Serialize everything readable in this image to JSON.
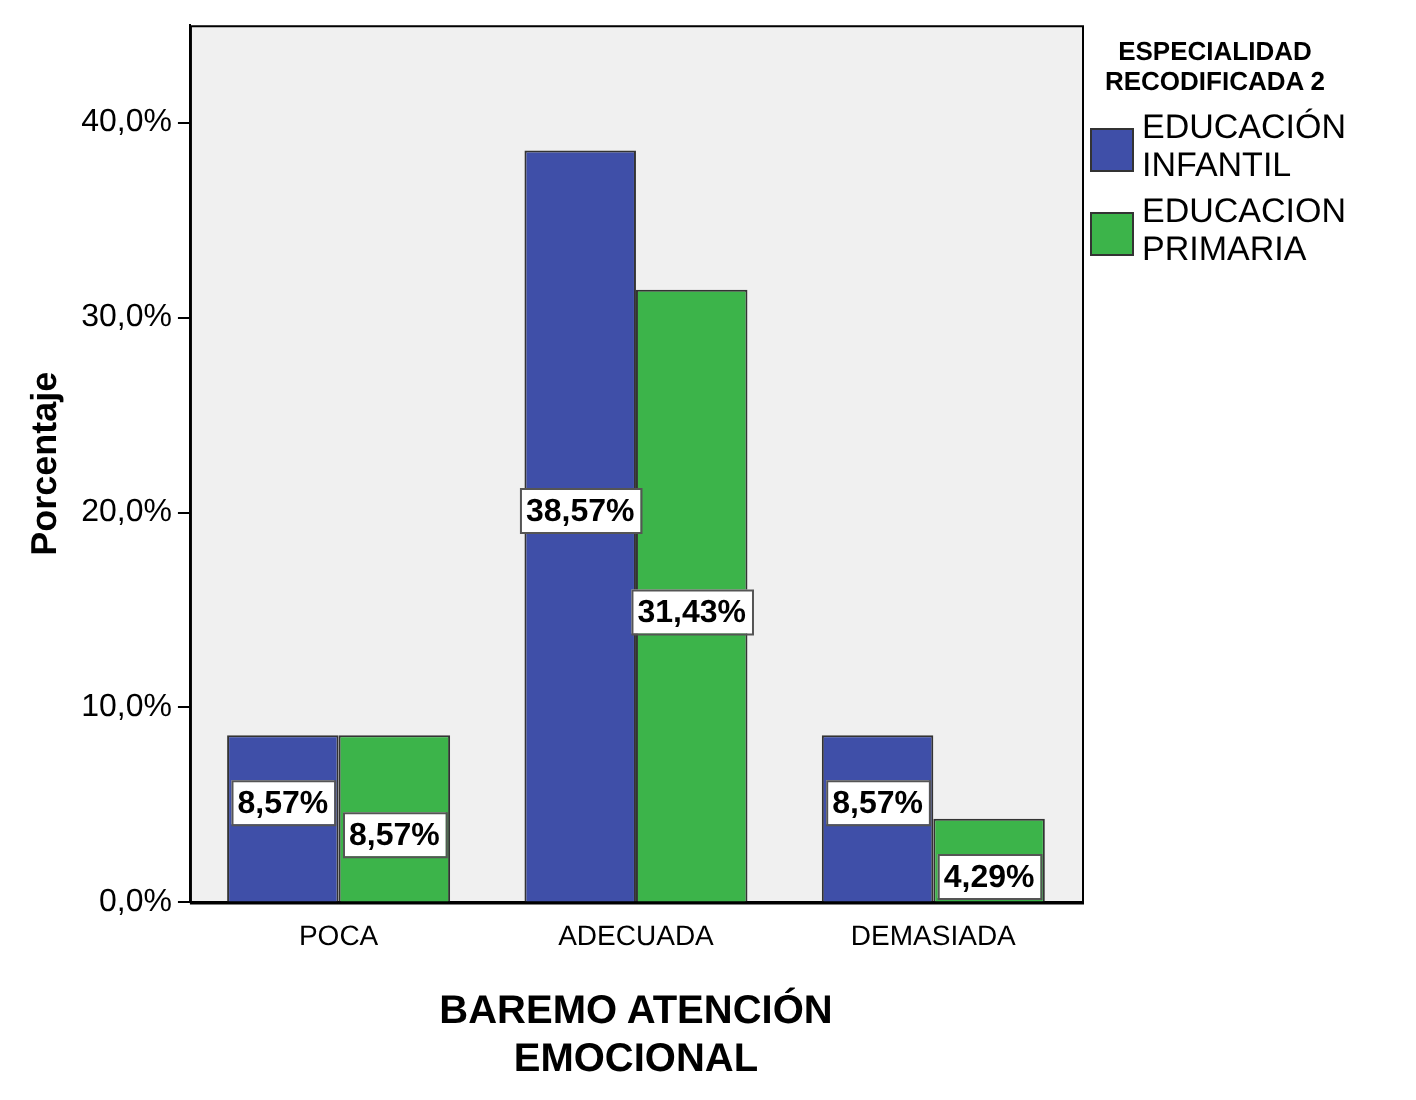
{
  "chart_data": {
    "type": "bar",
    "xlabel": "BAREMO ATENCIÓN EMOCIONAL",
    "ylabel": "Porcentaje",
    "legend_title": "ESPECIALIDAD RECODIFICADA 2",
    "categories": [
      "POCA",
      "ADECUADA",
      "DEMASIADA"
    ],
    "series": [
      {
        "name": "EDUCACIÓN INFANTIL",
        "color": "#3f4fa8",
        "values": [
          8.57,
          38.57,
          8.57
        ],
        "value_labels": [
          "8,57%",
          "38,57%",
          "8,57%"
        ]
      },
      {
        "name": "EDUCACION PRIMARIA",
        "color": "#3cb44a",
        "values": [
          8.57,
          31.43,
          4.29
        ],
        "value_labels": [
          "8,57%",
          "31,43%",
          "4,29%"
        ]
      }
    ],
    "ylim": [
      0,
      45
    ],
    "yticks": [
      {
        "value": 0,
        "label": "0,0%"
      },
      {
        "value": 10,
        "label": "10,0%"
      },
      {
        "value": 20,
        "label": "20,0%"
      },
      {
        "value": 30,
        "label": "30,0%"
      },
      {
        "value": 40,
        "label": "40,0%"
      }
    ],
    "grid": false,
    "legend": "right"
  }
}
